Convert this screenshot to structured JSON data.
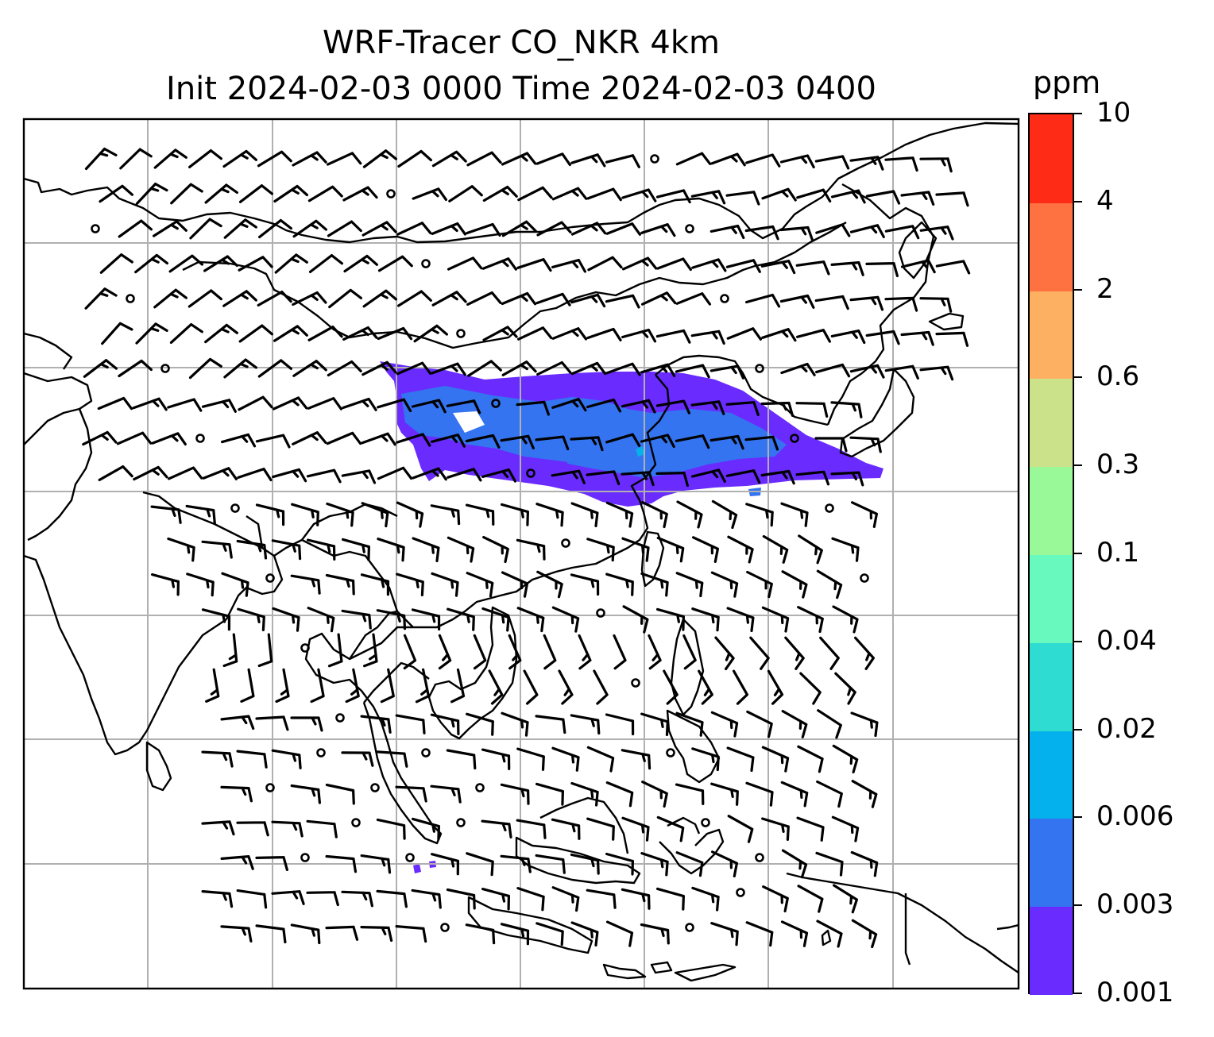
{
  "title": {
    "line1": "WRF-Tracer CO_NKR 4km",
    "line2": "Init 2024-02-03 0000 Time 2024-02-03 0400"
  },
  "colorbar": {
    "unit": "ppm",
    "levels": [
      "0.001",
      "0.003",
      "0.006",
      "0.02",
      "0.04",
      "0.1",
      "0.3",
      "0.6",
      "2",
      "4",
      "10"
    ],
    "colors": [
      "#6a2bff",
      "#3474f0",
      "#05b1ec",
      "#2fdcd2",
      "#67f9bd",
      "#99f998",
      "#cbe18a",
      "#fdb062",
      "#fe7141",
      "#fe2b17"
    ]
  },
  "map": {
    "frame": "gridded map with coastlines and wind barbs",
    "plume_color": "#6a2bff",
    "plume_core_color": "#3474f0"
  }
}
